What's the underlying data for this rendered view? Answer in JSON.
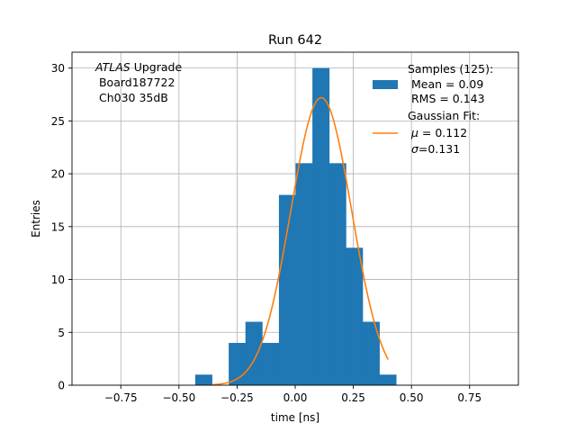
{
  "chart_data": {
    "type": "bar",
    "title": "Run 642",
    "xlabel": "time [ns]",
    "ylabel": "Entries",
    "xlim": [
      -0.96,
      0.96
    ],
    "ylim": [
      0,
      31.5
    ],
    "grid": true,
    "x_ticks": [
      {
        "value": -0.75,
        "label": "−0.75"
      },
      {
        "value": -0.5,
        "label": "−0.50"
      },
      {
        "value": -0.25,
        "label": "−0.25"
      },
      {
        "value": 0.0,
        "label": "0.00"
      },
      {
        "value": 0.25,
        "label": "0.25"
      },
      {
        "value": 0.5,
        "label": "0.50"
      },
      {
        "value": 0.75,
        "label": "0.75"
      }
    ],
    "y_ticks": [
      {
        "value": 0,
        "label": "0"
      },
      {
        "value": 5,
        "label": "5"
      },
      {
        "value": 10,
        "label": "10"
      },
      {
        "value": 15,
        "label": "15"
      },
      {
        "value": 20,
        "label": "20"
      },
      {
        "value": 25,
        "label": "25"
      },
      {
        "value": 30,
        "label": "30"
      }
    ],
    "histogram": {
      "bin_edges": [
        -0.43,
        -0.358,
        -0.286,
        -0.214,
        -0.142,
        -0.07,
        0.002,
        0.074,
        0.146,
        0.218,
        0.29,
        0.362,
        0.434
      ],
      "counts": [
        1,
        0,
        4,
        6,
        4,
        18,
        21,
        30,
        21,
        13,
        6,
        1
      ],
      "color": "#1f77b4"
    },
    "fit": {
      "mu": 0.112,
      "sigma": 0.131,
      "amplitude": 27.2,
      "x_range": [
        -0.36,
        0.4
      ],
      "color": "#ff7f0e"
    },
    "annotation": {
      "atlas_italic": "ATLAS",
      "line1_rest": " Upgrade",
      "line2": " Board187722",
      "line3": " Ch030 35dB"
    },
    "legend": {
      "position": "upper-right",
      "samples": {
        "line1": "Samples (125):",
        "line2": " Mean = 0.09",
        "line3": " RMS = 0.143"
      },
      "fit": {
        "line1": "Gaussian Fit:",
        "mu_symbol": "μ",
        "mu_rest": " = 0.112",
        "sigma_symbol": "σ",
        "sigma_rest": "=0.131"
      }
    }
  }
}
